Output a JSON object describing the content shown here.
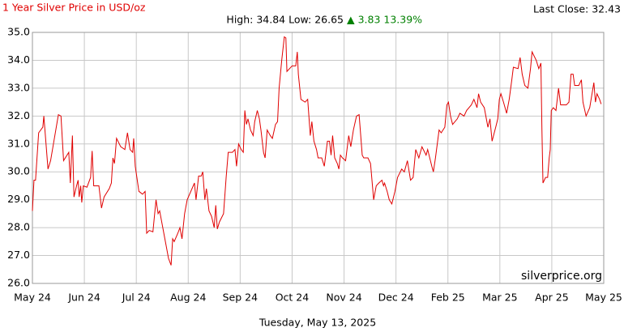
{
  "chart_data": {
    "type": "line",
    "title": "1 Year Silver Price in USD/oz",
    "last_close": "Last Close: 32.43",
    "high_low": "High: 34.84 Low: 26.65",
    "change": "▲ 3.83 13.39%",
    "watermark": "silverprice.org",
    "date": "Tuesday, May 13, 2025",
    "color": "#e00000",
    "grid": true,
    "xlim": [
      0,
      11
    ],
    "xticks": [
      {
        "value": 0,
        "label": "May 24"
      },
      {
        "value": 1,
        "label": "Jun 24"
      },
      {
        "value": 2,
        "label": "Jul 24"
      },
      {
        "value": 3,
        "label": "Aug 24"
      },
      {
        "value": 4,
        "label": "Sep 24"
      },
      {
        "value": 5,
        "label": "Oct 24"
      },
      {
        "value": 6,
        "label": "Nov 24"
      },
      {
        "value": 7,
        "label": "Dec 24"
      },
      {
        "value": 8,
        "label": "Feb 25"
      },
      {
        "value": 9,
        "label": "Mar 25"
      },
      {
        "value": 10,
        "label": "Apr 25"
      },
      {
        "value": 11,
        "label": "May 25"
      }
    ],
    "ylim": [
      26,
      35
    ],
    "yticks": [
      {
        "value": 26,
        "label": "26.0"
      },
      {
        "value": 27,
        "label": "27.0"
      },
      {
        "value": 28,
        "label": "28.0"
      },
      {
        "value": 29,
        "label": "29.0"
      },
      {
        "value": 30,
        "label": "30.0"
      },
      {
        "value": 31,
        "label": "31.0"
      },
      {
        "value": 32,
        "label": "32.0"
      },
      {
        "value": 33,
        "label": "33.0"
      },
      {
        "value": 34,
        "label": "34.0"
      },
      {
        "value": 35,
        "label": "35.0"
      }
    ],
    "x": [
      0,
      0.03,
      0.06,
      0.12,
      0.2,
      0.22,
      0.3,
      0.35,
      0.45,
      0.5,
      0.55,
      0.6,
      0.7,
      0.73,
      0.77,
      0.8,
      0.85,
      0.88,
      0.9,
      0.93,
      0.95,
      0.98,
      1.05,
      1.12,
      1.15,
      1.18,
      1.28,
      1.33,
      1.38,
      1.48,
      1.52,
      1.55,
      1.58,
      1.62,
      1.7,
      1.78,
      1.83,
      1.88,
      1.93,
      1.95,
      1.98,
      2.05,
      2.12,
      2.17,
      2.2,
      2.25,
      2.32,
      2.38,
      2.42,
      2.45,
      2.55,
      2.62,
      2.67,
      2.7,
      2.73,
      2.8,
      2.84,
      2.88,
      2.93,
      2.98,
      3.05,
      3.12,
      3.15,
      3.2,
      3.25,
      3.28,
      3.32,
      3.35,
      3.4,
      3.45,
      3.5,
      3.53,
      3.56,
      3.6,
      3.68,
      3.73,
      3.77,
      3.85,
      3.9,
      3.93,
      3.97,
      4.02,
      4.06,
      4.09,
      4.12,
      4.15,
      4.2,
      4.25,
      4.28,
      4.33,
      4.37,
      4.4,
      4.45,
      4.48,
      4.52,
      4.58,
      4.62,
      4.68,
      4.72,
      4.75,
      4.8,
      4.85,
      4.88,
      4.9,
      4.95,
      5.0,
      5.07,
      5.1,
      5.12,
      5.17,
      5.25,
      5.3,
      5.35,
      5.38,
      5.42,
      5.47,
      5.5,
      5.57,
      5.62,
      5.68,
      5.72,
      5.75,
      5.78,
      5.82,
      5.87,
      5.9,
      5.93,
      5.97,
      6.03,
      6.09,
      6.13,
      6.18,
      6.24,
      6.29,
      6.35,
      6.38,
      6.46,
      6.51,
      6.57,
      6.62,
      6.67,
      6.73,
      6.76,
      6.78,
      6.83,
      6.87,
      6.92,
      6.98,
      7.03,
      7.11,
      7.16,
      7.22,
      7.28,
      7.33,
      7.38,
      7.44,
      7.5,
      7.58,
      7.61,
      7.69,
      7.72,
      7.76,
      7.83,
      7.87,
      7.94,
      7.98,
      8.01,
      8.05,
      8.09,
      8.18,
      8.23,
      8.31,
      8.36,
      8.45,
      8.5,
      8.56,
      8.59,
      8.63,
      8.7,
      8.77,
      8.81,
      8.85,
      8.92,
      8.96,
      8.99,
      9.02,
      9.07,
      9.13,
      9.18,
      9.23,
      9.26,
      9.35,
      9.39,
      9.43,
      9.48,
      9.54,
      9.59,
      9.62,
      9.7,
      9.75,
      9.79,
      9.81,
      9.83,
      9.88,
      9.92,
      9.95,
      9.97,
      9.99,
      10.03,
      10.08,
      10.13,
      10.17,
      10.28,
      10.33,
      10.37,
      10.41,
      10.44,
      10.52,
      10.57,
      10.6,
      10.66,
      10.73,
      10.81,
      10.84,
      10.87,
      10.92,
      10.95
    ],
    "values": [
      28.6,
      29.7,
      29.7,
      31.4,
      31.6,
      32.0,
      30.1,
      30.4,
      31.5,
      32.05,
      32.0,
      30.4,
      30.7,
      29.6,
      31.3,
      29.1,
      29.5,
      29.7,
      29.1,
      29.5,
      28.9,
      29.5,
      29.45,
      29.8,
      30.75,
      29.5,
      29.5,
      28.7,
      29.1,
      29.4,
      29.6,
      30.5,
      30.3,
      31.2,
      30.9,
      30.8,
      31.4,
      30.8,
      30.7,
      31.2,
      30.2,
      29.3,
      29.2,
      29.3,
      27.8,
      27.9,
      27.85,
      29.0,
      28.5,
      28.6,
      27.6,
      26.9,
      26.65,
      27.6,
      27.5,
      27.8,
      28.0,
      27.6,
      28.5,
      29.0,
      29.3,
      29.6,
      29.0,
      29.85,
      29.85,
      30.0,
      29.0,
      29.4,
      28.6,
      28.4,
      28.0,
      28.8,
      27.95,
      28.2,
      28.5,
      29.8,
      30.7,
      30.7,
      30.8,
      30.2,
      31.0,
      30.8,
      30.7,
      32.2,
      31.7,
      31.9,
      31.5,
      31.3,
      31.8,
      32.2,
      31.9,
      31.5,
      30.7,
      30.5,
      31.5,
      31.3,
      31.2,
      31.7,
      31.8,
      33.0,
      34.0,
      34.84,
      34.8,
      33.6,
      33.7,
      33.8,
      33.8,
      34.3,
      33.5,
      32.6,
      32.5,
      32.6,
      31.3,
      31.8,
      31.1,
      30.8,
      30.5,
      30.5,
      30.2,
      31.1,
      31.1,
      30.6,
      31.3,
      30.5,
      30.3,
      30.1,
      30.6,
      30.5,
      30.4,
      31.3,
      30.9,
      31.5,
      32.0,
      32.05,
      30.6,
      30.5,
      30.5,
      30.3,
      29.0,
      29.5,
      29.6,
      29.7,
      29.5,
      29.6,
      29.3,
      29.0,
      28.85,
      29.3,
      29.8,
      30.1,
      30.0,
      30.4,
      29.7,
      29.8,
      30.8,
      30.5,
      30.9,
      30.6,
      30.8,
      30.2,
      30.0,
      30.5,
      31.5,
      31.4,
      31.6,
      32.4,
      32.5,
      32.0,
      31.7,
      31.9,
      32.1,
      32.0,
      32.2,
      32.4,
      32.6,
      32.3,
      32.8,
      32.5,
      32.3,
      31.6,
      31.9,
      31.1,
      31.6,
      31.9,
      32.6,
      32.8,
      32.5,
      32.1,
      32.6,
      33.3,
      33.75,
      33.7,
      34.1,
      33.5,
      33.1,
      33.0,
      33.7,
      34.3,
      34.0,
      33.7,
      33.9,
      31.5,
      29.6,
      29.8,
      29.8,
      30.5,
      30.8,
      32.2,
      32.3,
      32.2,
      33.0,
      32.4,
      32.4,
      32.5,
      33.5,
      33.5,
      33.1,
      33.1,
      33.3,
      32.5,
      32.0,
      32.3,
      33.2,
      32.5,
      32.8,
      32.6,
      32.43
    ]
  }
}
